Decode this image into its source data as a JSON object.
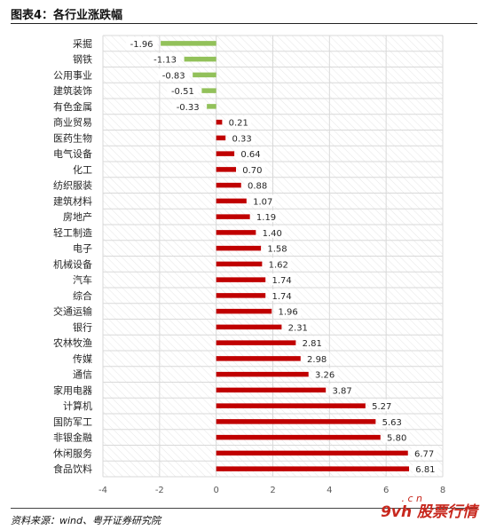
{
  "header": {
    "title": "图表4：各行业涨跌幅"
  },
  "footer": {
    "source": "资料来源：wind、粤开证券研究院"
  },
  "watermark": {
    "main": "9vh 股票行情",
    "sub": ". c n"
  },
  "colors": {
    "positive": "#c00000",
    "negative": "#92c15a",
    "grid": "#d9d9d9",
    "hatch": "#e6e6e6"
  },
  "chart_data": {
    "type": "bar",
    "orientation": "horizontal",
    "title": "",
    "xlabel": "",
    "ylabel": "",
    "xlim": [
      -4,
      8
    ],
    "xticks": [
      -4,
      -2,
      0,
      2,
      4,
      6,
      8
    ],
    "grid": true,
    "legend": "none",
    "categories": [
      "采掘",
      "钢铁",
      "公用事业",
      "建筑装饰",
      "有色金属",
      "商业贸易",
      "医药生物",
      "电气设备",
      "化工",
      "纺织服装",
      "建筑材料",
      "房地产",
      "轻工制造",
      "电子",
      "机械设备",
      "汽车",
      "综合",
      "交通运输",
      "银行",
      "农林牧渔",
      "传媒",
      "通信",
      "家用电器",
      "计算机",
      "国防军工",
      "非银金融",
      "休闲服务",
      "食品饮料"
    ],
    "values": [
      -1.96,
      -1.13,
      -0.83,
      -0.51,
      -0.33,
      0.21,
      0.33,
      0.64,
      0.7,
      0.88,
      1.07,
      1.19,
      1.4,
      1.58,
      1.62,
      1.74,
      1.74,
      1.96,
      2.31,
      2.81,
      2.98,
      3.26,
      3.87,
      5.27,
      5.63,
      5.8,
      6.77,
      6.81
    ],
    "value_labels": [
      "-1.96",
      "-1.13",
      "-0.83",
      "-0.51",
      "-0.33",
      "0.21",
      "0.33",
      "0.64",
      "0.70",
      "0.88",
      "1.07",
      "1.19",
      "1.40",
      "1.58",
      "1.62",
      "1.74",
      "1.74",
      "1.96",
      "2.31",
      "2.81",
      "2.98",
      "3.26",
      "3.87",
      "5.27",
      "5.63",
      "5.80",
      "6.77",
      "6.81"
    ]
  }
}
